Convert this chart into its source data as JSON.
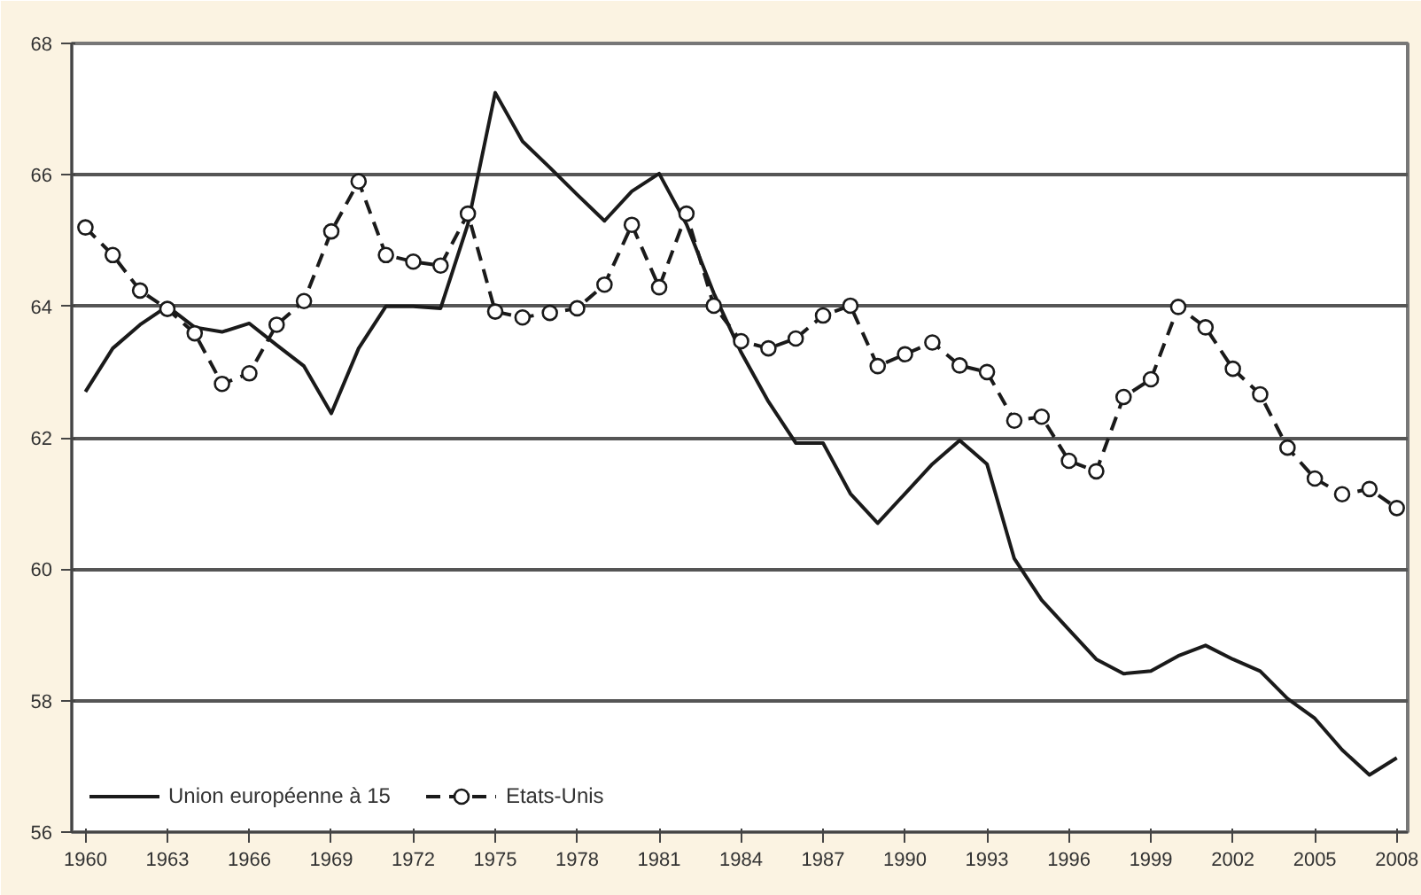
{
  "chart_data": {
    "type": "line",
    "x": [
      1960,
      1961,
      1962,
      1963,
      1964,
      1965,
      1966,
      1967,
      1968,
      1969,
      1970,
      1971,
      1972,
      1973,
      1974,
      1975,
      1976,
      1977,
      1978,
      1979,
      1980,
      1981,
      1982,
      1983,
      1984,
      1985,
      1986,
      1987,
      1988,
      1989,
      1990,
      1991,
      1992,
      1993,
      1994,
      1995,
      1996,
      1997,
      1998,
      1999,
      2000,
      2001,
      2002,
      2003,
      2004,
      2005,
      2006,
      2007,
      2008
    ],
    "series": [
      {
        "name": "Union européenne à 15",
        "color": "#1a1a1a",
        "line_style": "solid",
        "marker": "none",
        "values": [
          62.7,
          63.36,
          63.72,
          64.0,
          63.68,
          63.61,
          63.74,
          63.41,
          63.09,
          62.37,
          63.36,
          64.0,
          64.0,
          63.97,
          65.25,
          67.25,
          66.51,
          66.11,
          65.7,
          65.3,
          65.75,
          66.02,
          65.25,
          64.2,
          63.3,
          62.55,
          61.92,
          61.92,
          61.15,
          60.7,
          61.15,
          61.6,
          61.96,
          61.6,
          60.16,
          59.53,
          59.08,
          58.63,
          58.41,
          58.45,
          58.68,
          58.84,
          58.63,
          58.45,
          58.03,
          57.73,
          57.25,
          56.87,
          57.13
        ]
      },
      {
        "name": "Etats-Unis",
        "color": "#1a1a1a",
        "line_style": "dashed",
        "marker": "circle",
        "values": [
          65.2,
          64.78,
          64.24,
          63.96,
          63.59,
          62.82,
          62.98,
          63.72,
          64.08,
          65.14,
          65.9,
          64.78,
          64.68,
          64.62,
          65.41,
          63.92,
          63.83,
          63.9,
          63.97,
          64.33,
          65.24,
          64.29,
          65.41,
          64.01,
          63.47,
          63.36,
          63.51,
          63.86,
          64.01,
          63.09,
          63.27,
          63.45,
          63.1,
          63.0,
          62.26,
          62.32,
          61.65,
          61.49,
          62.62,
          62.89,
          63.99,
          63.68,
          63.05,
          62.66,
          61.85,
          61.38,
          61.14,
          61.22,
          60.93
        ]
      }
    ],
    "xlim": [
      1959.5,
      2008.4
    ],
    "xticks": [
      1960,
      1963,
      1966,
      1969,
      1972,
      1975,
      1978,
      1981,
      1984,
      1987,
      1990,
      1993,
      1996,
      1999,
      2002,
      2005,
      2008
    ],
    "ylim": [
      56,
      68
    ],
    "yticks": [
      56,
      58,
      60,
      62,
      64,
      66,
      68
    ],
    "grid": "y",
    "legend": "bottom left"
  }
}
